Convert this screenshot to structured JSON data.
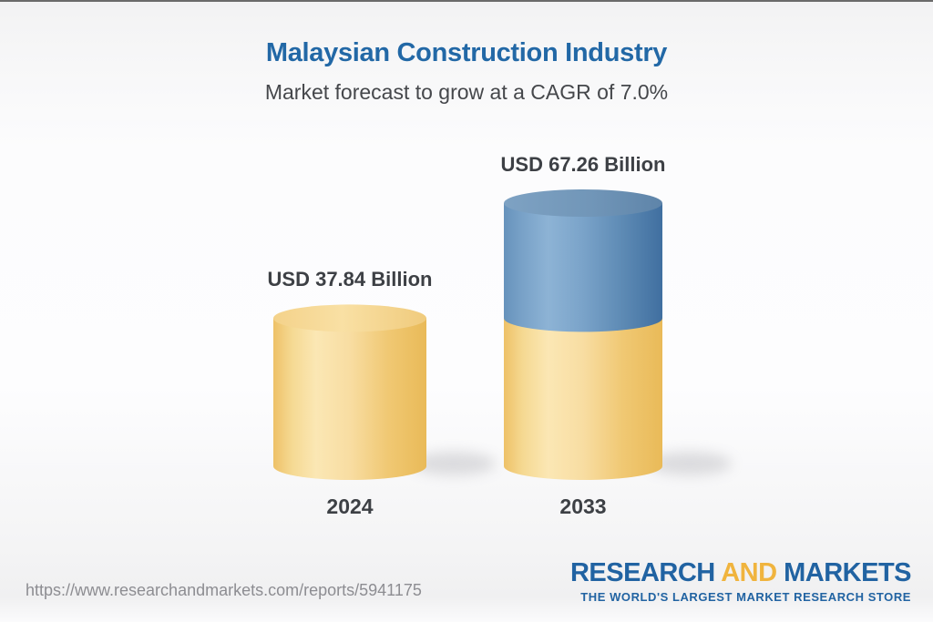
{
  "header": {
    "title": "Malaysian Construction Industry",
    "subtitle": "Market forecast to grow at a CAGR of 7.0%"
  },
  "chart_data": {
    "type": "bar",
    "subtype": "3d-cylinder-stacked",
    "title": "Malaysian Construction Industry",
    "subtitle": "Market forecast to grow at a CAGR of 7.0%",
    "unit": "USD Billion",
    "cagr_percent": 7.0,
    "categories": [
      "2024",
      "2033"
    ],
    "values": [
      37.84,
      67.26
    ],
    "bar_labels": [
      "USD 37.84 Billion",
      "USD 67.26 Billion"
    ],
    "series": [
      {
        "name": "2024-base-value",
        "color": "yellow",
        "values": [
          37.84,
          37.84
        ]
      },
      {
        "name": "forecast-growth-to-2033",
        "color": "blue",
        "values": [
          0,
          29.42
        ]
      }
    ],
    "colors": {
      "yellow": "#f3cf82",
      "blue": "#5d8bb5"
    },
    "ylim": [
      0,
      67.26
    ],
    "grid": false,
    "legend": false
  },
  "footer": {
    "url": "https://www.researchandmarkets.com/reports/5941175",
    "logo": {
      "part1": "RESEARCH",
      "part2": "AND",
      "part3": "MARKETS",
      "tagline": "THE WORLD'S LARGEST MARKET RESEARCH STORE"
    }
  }
}
